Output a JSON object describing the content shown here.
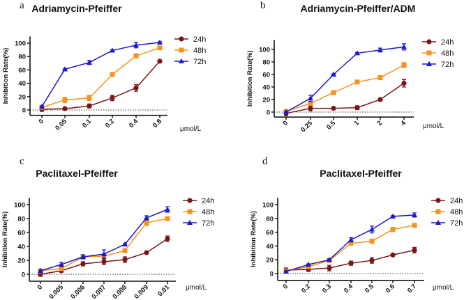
{
  "chart_data": [
    {
      "type": "line",
      "panel_label": "a",
      "title": "Adriamycin-Pfeiffer",
      "ylabel": "Inhibition Rate(%)",
      "xlabel": "μmol/L",
      "categories": [
        "0",
        "0.05",
        "0.1",
        "0.2",
        "0.4",
        "0.8"
      ],
      "yticks": [
        0,
        20,
        40,
        60,
        80,
        100
      ],
      "ylim": [
        -8,
        110
      ],
      "legend": "right",
      "series": [
        {
          "name": "24h",
          "marker": "circle",
          "color": "#7a1518",
          "values": [
            1,
            2,
            6,
            18,
            33,
            73
          ],
          "errors": [
            3,
            1,
            3,
            4,
            5,
            1
          ]
        },
        {
          "name": "48h",
          "marker": "square",
          "color": "#f7921e",
          "values": [
            4,
            15,
            18,
            53,
            81,
            93
          ],
          "errors": [
            2,
            4,
            4,
            1,
            3,
            1
          ]
        },
        {
          "name": "72h",
          "marker": "triangle",
          "color": "#1a1ad0",
          "values": [
            5,
            61,
            71,
            89,
            97,
            101
          ],
          "errors": [
            1,
            1,
            3,
            1,
            4,
            1
          ]
        }
      ]
    },
    {
      "type": "line",
      "panel_label": "b",
      "title": "Adriamycin-Pfeiffer/ADM",
      "ylabel": "Inhibition Rate(%)",
      "xlabel": "μmol/L",
      "categories": [
        "0",
        "0.25",
        "0.5",
        "1",
        "2",
        "4"
      ],
      "yticks": [
        0,
        20,
        40,
        60,
        80,
        100
      ],
      "ylim": [
        -8,
        115
      ],
      "legend": "right",
      "series": [
        {
          "name": "24h",
          "marker": "circle",
          "color": "#7a1518",
          "values": [
            -2,
            6,
            6,
            7,
            20,
            46
          ],
          "errors": [
            4,
            4,
            1,
            3,
            2,
            6
          ]
        },
        {
          "name": "48h",
          "marker": "square",
          "color": "#f7921e",
          "values": [
            1,
            14,
            31,
            48,
            55,
            75
          ],
          "errors": [
            3,
            2,
            3,
            1,
            1,
            4
          ]
        },
        {
          "name": "72h",
          "marker": "triangle",
          "color": "#1a1ad0",
          "values": [
            0,
            22,
            60,
            94,
            99,
            104
          ],
          "errors": [
            1,
            5,
            1,
            1,
            3,
            5
          ]
        }
      ]
    },
    {
      "type": "line",
      "panel_label": "c",
      "title": "Paclitaxel-Pfeiffer",
      "ylabel": "Inhibition Rate(%)",
      "xlabel": "μmol/L",
      "categories": [
        "0",
        "0.005",
        "0.006",
        "0.007",
        "0.008",
        "0.009",
        "0.01"
      ],
      "yticks": [
        0,
        20,
        40,
        60,
        80,
        100
      ],
      "ylim": [
        -10,
        110
      ],
      "legend": "right",
      "series": [
        {
          "name": "24h",
          "marker": "circle",
          "color": "#7a1518",
          "values": [
            0,
            5,
            15,
            18,
            21,
            31,
            51
          ],
          "errors": [
            3,
            2,
            3,
            4,
            4,
            1,
            4
          ]
        },
        {
          "name": "48h",
          "marker": "square",
          "color": "#f7921e",
          "values": [
            5,
            8,
            25,
            26,
            34,
            74,
            80
          ],
          "errors": [
            2,
            2,
            2,
            3,
            2,
            4,
            1
          ]
        },
        {
          "name": "72h",
          "marker": "triangle",
          "color": "#1a1ad0",
          "values": [
            5,
            14,
            25,
            29,
            43,
            81,
            93
          ],
          "errors": [
            1,
            3,
            3,
            6,
            1,
            3,
            4
          ]
        }
      ]
    },
    {
      "type": "line",
      "panel_label": "d",
      "title": "Paclitaxel-Pfeiffer",
      "ylabel": "Inhibition Rate(%)",
      "xlabel": "μmol/L",
      "categories": [
        "0",
        "0.2",
        "0.3",
        "0.4",
        "0.5",
        "0.6",
        "0.7"
      ],
      "yticks": [
        0,
        20,
        40,
        60,
        80,
        100
      ],
      "ylim": [
        -10,
        110
      ],
      "legend": "right",
      "series": [
        {
          "name": "24h",
          "marker": "circle",
          "color": "#7a1518",
          "values": [
            5,
            6,
            8,
            15,
            19,
            27,
            34
          ],
          "errors": [
            3,
            3,
            4,
            3,
            4,
            1,
            4
          ]
        },
        {
          "name": "48h",
          "marker": "square",
          "color": "#f7921e",
          "values": [
            4,
            10,
            19,
            44,
            47,
            64,
            70
          ],
          "errors": [
            2,
            1,
            2,
            2,
            3,
            3,
            2
          ]
        },
        {
          "name": "72h",
          "marker": "triangle",
          "color": "#1a1ad0",
          "values": [
            3,
            13,
            20,
            49,
            64,
            83,
            85
          ],
          "errors": [
            1,
            1,
            1,
            3,
            5,
            1,
            3
          ]
        }
      ]
    }
  ]
}
